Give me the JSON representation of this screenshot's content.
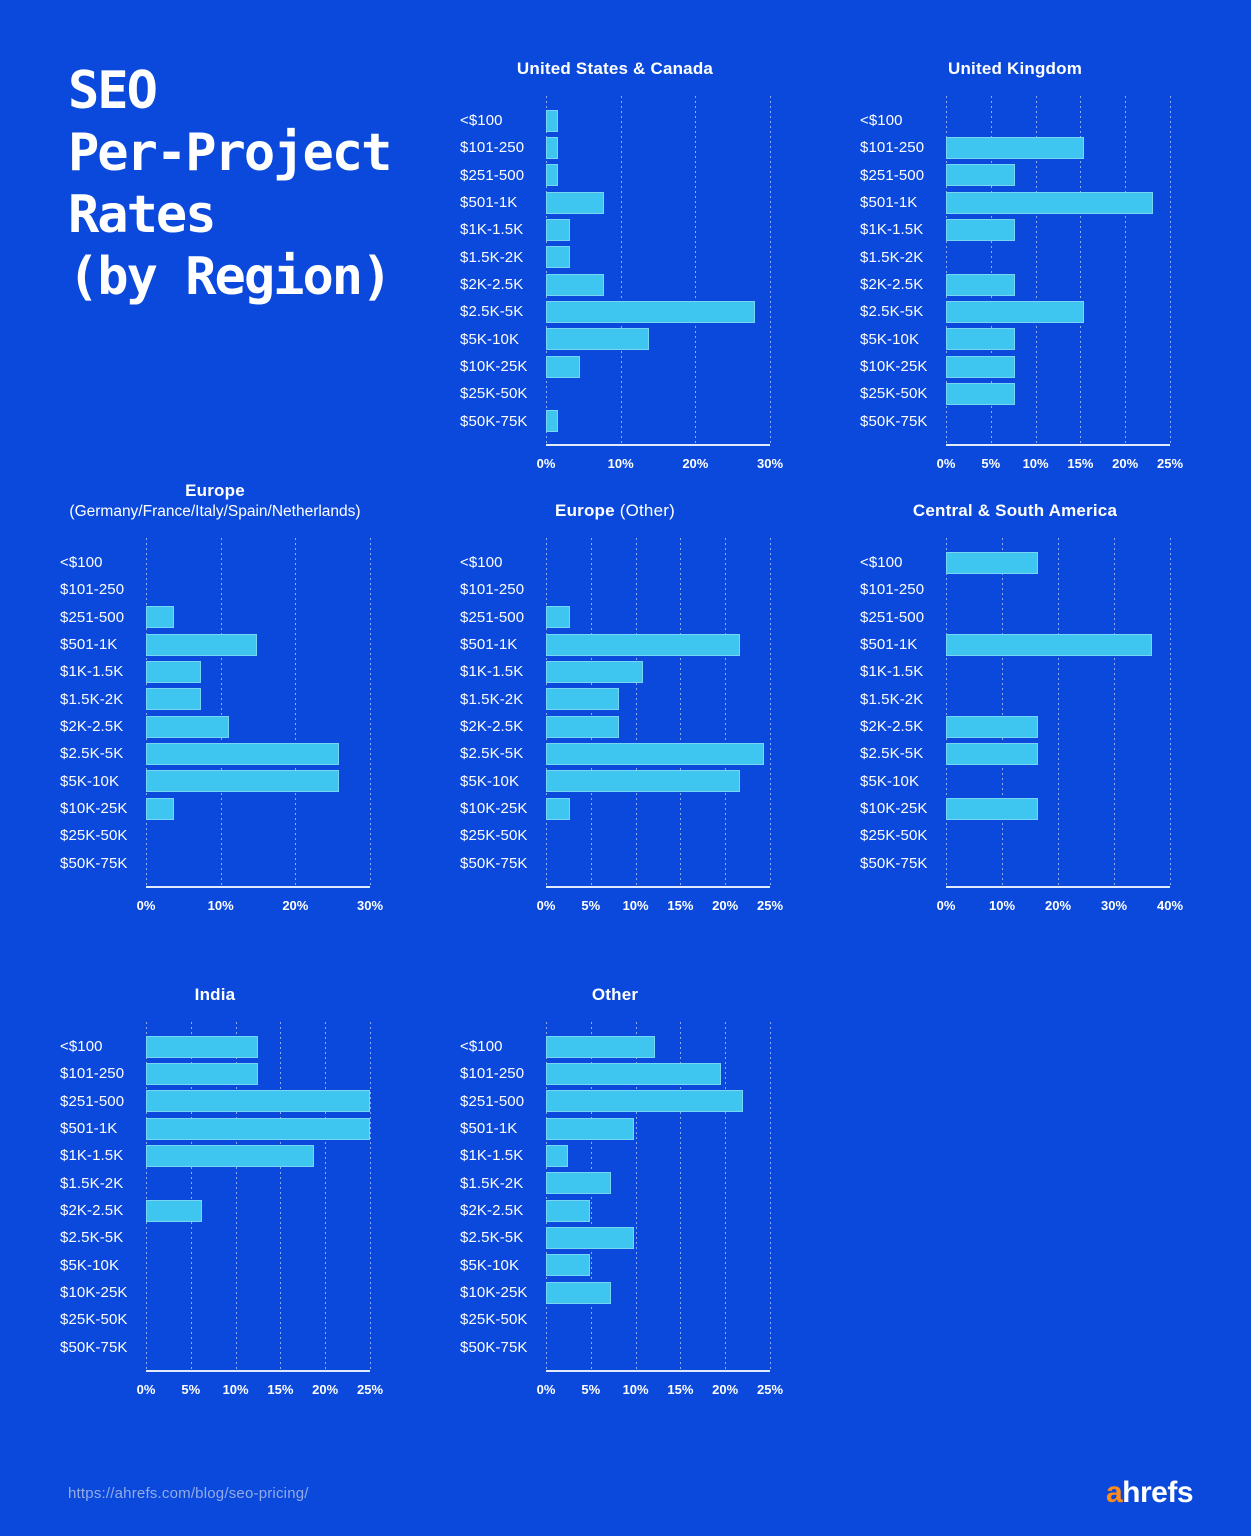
{
  "page": {
    "main_title_lines": [
      "SEO",
      "Per-Project",
      "Rates",
      "(by Region)"
    ],
    "colors": {
      "background": "#0A49DB",
      "bar": "#3EC5F0",
      "logo_orange": "#FF8C1A",
      "footer_url": "#93ABE6"
    },
    "footer": {
      "url": "https://ahrefs.com/blog/seo-pricing/",
      "logo_a": "a",
      "logo_rest": "hrefs"
    }
  },
  "chart_data": {
    "type": "bar",
    "orientation": "horizontal",
    "grid": "vertical-dotted",
    "unit": "%",
    "categories": [
      "<$100",
      "$101-250",
      "$251-500",
      "$501-1K",
      "$1K-1.5K",
      "$1.5K-2K",
      "$2K-2.5K",
      "$2.5K-5K",
      "$5K-10K",
      "$10K-25K",
      "$25K-50K",
      "$50K-75K"
    ],
    "charts": [
      {
        "title": "United States & Canada",
        "title_suffix": "",
        "subtitle": "",
        "values": [
          1.6,
          1.6,
          1.6,
          7.8,
          3.2,
          3.2,
          7.8,
          28.0,
          13.8,
          4.5,
          0,
          1.6
        ],
        "xmax": 30,
        "ticks": [
          0,
          10,
          20,
          30
        ],
        "tick_labels": [
          "0%",
          "10%",
          "20%",
          "30%"
        ]
      },
      {
        "title": "United Kingdom",
        "title_suffix": "",
        "subtitle": "",
        "values": [
          0,
          15.4,
          7.7,
          23.1,
          7.7,
          0,
          7.7,
          15.4,
          7.7,
          7.7,
          7.7,
          0
        ],
        "xmax": 25,
        "ticks": [
          0,
          5,
          10,
          15,
          20,
          25
        ],
        "tick_labels": [
          "0%",
          "5%",
          "10%",
          "15%",
          "20%",
          "25%"
        ]
      },
      {
        "title": "Europe",
        "title_suffix": "",
        "subtitle": "(Germany/France/Italy/Spain/Netherlands)",
        "values": [
          0,
          0,
          3.7,
          14.8,
          7.4,
          7.4,
          11.1,
          25.9,
          25.9,
          3.7,
          0,
          0
        ],
        "xmax": 30,
        "ticks": [
          0,
          10,
          20,
          30
        ],
        "tick_labels": [
          "0%",
          "10%",
          "20%",
          "30%"
        ]
      },
      {
        "title": "Europe",
        "title_suffix": "(Other)",
        "subtitle": "",
        "values": [
          0,
          0,
          2.7,
          21.6,
          10.8,
          8.1,
          8.1,
          24.3,
          21.6,
          2.7,
          0,
          0
        ],
        "xmax": 25,
        "ticks": [
          0,
          5,
          10,
          15,
          20,
          25
        ],
        "tick_labels": [
          "0%",
          "5%",
          "10%",
          "15%",
          "20%",
          "25%"
        ]
      },
      {
        "title": "Central & South America",
        "title_suffix": "",
        "subtitle": "",
        "values": [
          16.5,
          0,
          0,
          36.7,
          0,
          0,
          16.5,
          16.5,
          0,
          16.5,
          0,
          0
        ],
        "xmax": 40,
        "ticks": [
          0,
          10,
          20,
          30,
          40
        ],
        "tick_labels": [
          "0%",
          "10%",
          "20%",
          "30%",
          "40%"
        ]
      },
      {
        "title": "India",
        "title_suffix": "",
        "subtitle": "",
        "values": [
          12.5,
          12.5,
          25.0,
          25.0,
          18.8,
          0,
          6.3,
          0,
          0,
          0,
          0,
          0
        ],
        "xmax": 25,
        "ticks": [
          0,
          5,
          10,
          15,
          20,
          25
        ],
        "tick_labels": [
          "0%",
          "5%",
          "10%",
          "15%",
          "20%",
          "25%"
        ]
      },
      {
        "title": "Other",
        "title_suffix": "",
        "subtitle": "",
        "values": [
          12.2,
          19.5,
          22.0,
          9.8,
          2.4,
          7.3,
          4.9,
          9.8,
          4.9,
          7.3,
          0,
          0
        ],
        "xmax": 25,
        "ticks": [
          0,
          5,
          10,
          15,
          20,
          25
        ],
        "tick_labels": [
          "0%",
          "5%",
          "10%",
          "15%",
          "20%",
          "25%"
        ]
      }
    ]
  }
}
